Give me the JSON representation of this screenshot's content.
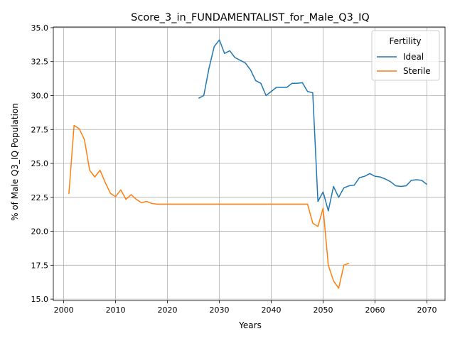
{
  "chart_data": {
    "type": "line",
    "title": "Score_3_in_FUNDAMENTALIST_for_Male_Q3_IQ",
    "xlabel": "Years",
    "ylabel": "% of Male Q3_IQ Population",
    "xlim": [
      1998,
      2073.5
    ],
    "ylim": [
      14.9,
      35.05
    ],
    "x_ticks": [
      2000,
      2010,
      2020,
      2030,
      2040,
      2050,
      2060,
      2070
    ],
    "y_ticks": [
      15.0,
      17.5,
      20.0,
      22.5,
      25.0,
      27.5,
      30.0,
      32.5,
      35.0
    ],
    "grid": true,
    "legend": {
      "title": "Fertility",
      "position": "top-right"
    },
    "series": [
      {
        "name": "Ideal",
        "color": "#1f77b4",
        "x": [
          2026,
          2027,
          2028,
          2029,
          2030,
          2031,
          2032,
          2033,
          2034,
          2035,
          2036,
          2037,
          2038,
          2039,
          2040,
          2041,
          2042,
          2043,
          2044,
          2045,
          2046,
          2047,
          2048,
          2049,
          2050,
          2051,
          2052,
          2053,
          2054,
          2055,
          2056,
          2057,
          2058,
          2059,
          2060,
          2061,
          2062,
          2063,
          2064,
          2065,
          2066,
          2067,
          2068,
          2069,
          2070
        ],
        "values": [
          29.8,
          30.0,
          32.0,
          33.6,
          34.1,
          33.1,
          33.3,
          32.8,
          32.6,
          32.4,
          31.9,
          31.1,
          30.9,
          30.0,
          30.3,
          30.6,
          30.6,
          30.6,
          30.9,
          30.9,
          30.95,
          30.3,
          30.2,
          22.2,
          22.9,
          21.5,
          23.3,
          22.5,
          23.2,
          23.35,
          23.4,
          23.95,
          24.05,
          24.25,
          24.05,
          24.0,
          23.85,
          23.65,
          23.35,
          23.3,
          23.35,
          23.75,
          23.8,
          23.75,
          23.45
        ]
      },
      {
        "name": "Sterile",
        "color": "#ff7f0e",
        "x": [
          2001,
          2002,
          2003,
          2004,
          2005,
          2006,
          2007,
          2008,
          2009,
          2010,
          2011,
          2012,
          2013,
          2014,
          2015,
          2016,
          2017,
          2018,
          2019,
          2020,
          2021,
          2022,
          2023,
          2024,
          2025,
          2026,
          2027,
          2028,
          2029,
          2030,
          2031,
          2032,
          2033,
          2034,
          2035,
          2036,
          2037,
          2038,
          2039,
          2040,
          2041,
          2042,
          2043,
          2044,
          2045,
          2046,
          2047,
          2048,
          2049,
          2050,
          2051,
          2052,
          2053,
          2054,
          2055
        ],
        "values": [
          22.75,
          27.8,
          27.55,
          26.75,
          24.5,
          24.0,
          24.5,
          23.6,
          22.8,
          22.55,
          23.05,
          22.35,
          22.7,
          22.35,
          22.1,
          22.2,
          22.05,
          22.0,
          22.0,
          22.0,
          22.0,
          22.0,
          22.0,
          22.0,
          22.0,
          22.0,
          22.0,
          22.0,
          22.0,
          22.0,
          22.0,
          22.0,
          22.0,
          22.0,
          22.0,
          22.0,
          22.0,
          22.0,
          22.0,
          22.0,
          22.0,
          22.0,
          22.0,
          22.0,
          22.0,
          22.0,
          22.0,
          20.6,
          20.35,
          21.7,
          17.5,
          16.35,
          15.8,
          17.5,
          17.65
        ]
      }
    ]
  }
}
